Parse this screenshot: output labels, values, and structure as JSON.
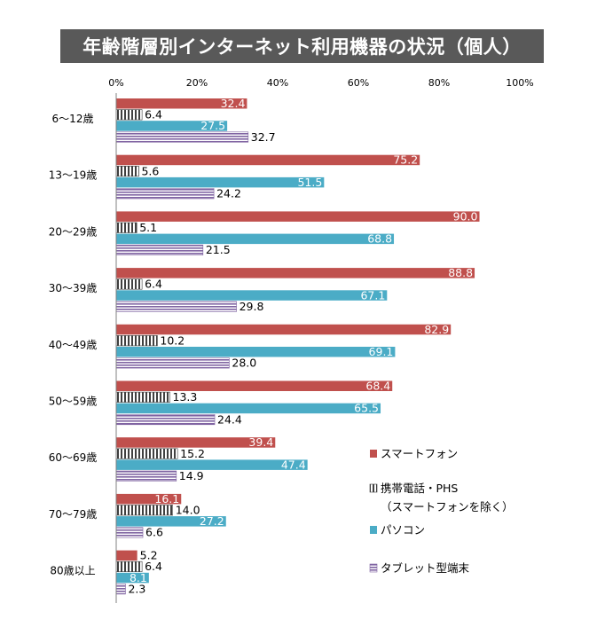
{
  "title": "年齢階層別インターネット利用機器の状況（個人）",
  "chart_data": {
    "type": "bar",
    "orientation": "horizontal",
    "xlim": [
      0,
      100
    ],
    "x_ticks": [
      "0%",
      "20%",
      "40%",
      "60%",
      "80%",
      "100%"
    ],
    "categories": [
      "6～12歳",
      "13～19歳",
      "20～29歳",
      "30～39歳",
      "40～49歳",
      "50～59歳",
      "60～69歳",
      "70～79歳",
      "80歳以上"
    ],
    "series": [
      {
        "name": "スマートフォン",
        "color": "#c0504d",
        "pattern": "solid",
        "values": [
          32.4,
          75.2,
          90.0,
          88.8,
          82.9,
          68.4,
          39.4,
          16.1,
          5.2
        ]
      },
      {
        "name": "携帯電話・PHS（スマートフォンを除く）",
        "color": "#404040",
        "pattern": "vertical-stripes",
        "values": [
          6.4,
          5.6,
          5.1,
          6.4,
          10.2,
          13.3,
          15.2,
          14.0,
          6.4
        ]
      },
      {
        "name": "パソコン",
        "color": "#4bacc6",
        "pattern": "solid",
        "values": [
          27.5,
          51.5,
          68.8,
          67.1,
          69.1,
          65.5,
          47.4,
          27.2,
          8.1
        ]
      },
      {
        "name": "タブレット型端末",
        "color": "#8064a2",
        "pattern": "horizontal-stripes",
        "values": [
          32.7,
          24.2,
          21.5,
          29.8,
          28.0,
          24.4,
          14.9,
          6.6,
          2.3
        ]
      }
    ],
    "legend": {
      "position": "bottom-right",
      "entries": [
        "スマートフォン",
        "携帯電話・PHS",
        "（スマートフォンを除く）",
        "パソコン",
        "タブレット型端末"
      ]
    }
  }
}
